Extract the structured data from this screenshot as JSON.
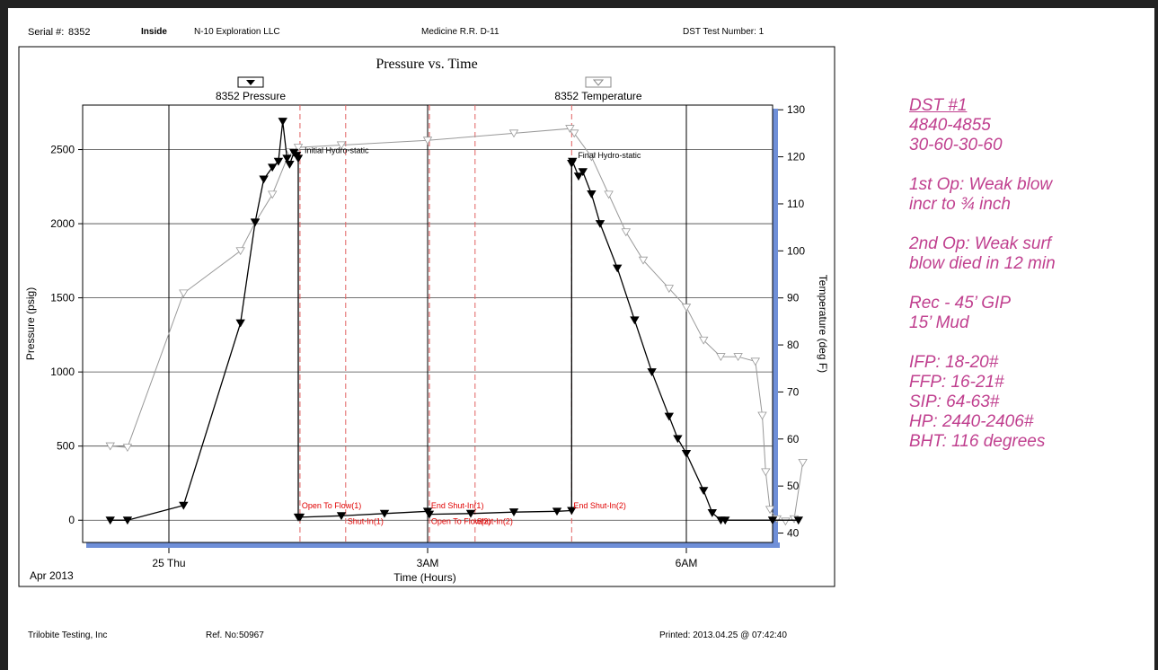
{
  "header": {
    "serial_label": "Serial #:",
    "serial_value": "8352",
    "inside": "Inside",
    "company": "N-10 Exploration LLC",
    "well": "Medicine R.R. D-11",
    "test_number": "DST Test Number: 1"
  },
  "footer": {
    "company": "Trilobite Testing, Inc",
    "ref_label": "Ref. No:",
    "ref_value": "50967",
    "printed": "Printed: 2013.04.25 @ 07:42:40"
  },
  "notes": [
    "DST #1",
    "4840-4855",
    "30-60-30-60",
    "",
    "1st Op:  Weak blow",
    "incr to ¾ inch",
    "",
    "2nd Op:  Weak surf",
    "blow died in 12 min",
    "",
    "Rec - 45’  GIP",
    "15’ Mud",
    "",
    "IFP:  18-20#",
    "FFP:  16-21#",
    "SIP:  64-63#",
    "HP:  2440-2406#",
    "BHT:  116 degrees"
  ],
  "colors": {
    "notes": "#c0408f",
    "axis_bar": "#6f8fd8",
    "marker_line": "#e06060",
    "event_text": "#e00000",
    "temperature": "#999999"
  },
  "chart_data": {
    "type": "line",
    "title": "Pressure vs. Time",
    "xlabel": "Time (Hours)",
    "ylabel": "Pressure (psig)",
    "y2label": "Temperature (deg F)",
    "x_ticks": [
      "25 Thu",
      "3AM",
      "6AM"
    ],
    "x_tick_hours": [
      0,
      3,
      6
    ],
    "x_corner_label": "Apr 2013",
    "xlim_hours": [
      -1.0,
      7.0
    ],
    "ylim": [
      -150,
      2800
    ],
    "y_ticks": [
      0,
      500,
      1000,
      1500,
      2000,
      2500
    ],
    "y2lim": [
      38,
      131
    ],
    "y2_ticks": [
      40,
      50,
      60,
      70,
      80,
      90,
      100,
      110,
      120,
      130
    ],
    "legend": [
      "8352 Pressure",
      "8352 Temperature"
    ],
    "series": [
      {
        "name": "8352 Pressure",
        "axis": "left",
        "x": [
          -0.68,
          -0.48,
          0.17,
          0.83,
          1.0,
          1.1,
          1.2,
          1.27,
          1.32,
          1.37,
          1.4,
          1.45,
          1.48,
          1.5,
          1.5,
          1.52,
          2.0,
          2.5,
          3.0,
          3.02,
          3.5,
          4.0,
          4.5,
          4.67,
          4.67,
          4.68,
          4.75,
          4.8,
          4.9,
          5.0,
          5.2,
          5.4,
          5.6,
          5.8,
          5.9,
          6.0,
          6.2,
          6.3,
          6.4,
          6.45,
          7.0,
          7.3
        ],
        "y": [
          0,
          0,
          100,
          1330,
          2010,
          2300,
          2380,
          2420,
          2690,
          2440,
          2400,
          2480,
          2460,
          2440,
          20,
          20,
          30,
          45,
          60,
          40,
          45,
          55,
          60,
          65,
          2406,
          2420,
          2320,
          2350,
          2200,
          2000,
          1700,
          1350,
          1000,
          700,
          550,
          450,
          200,
          50,
          0,
          0,
          0,
          0
        ]
      },
      {
        "name": "8352 Temperature",
        "axis": "right",
        "x": [
          -0.68,
          -0.48,
          0.17,
          0.83,
          1.0,
          1.2,
          1.4,
          1.5,
          2.0,
          3.0,
          4.0,
          4.65,
          4.7,
          4.9,
          5.1,
          5.3,
          5.5,
          5.8,
          6.0,
          6.2,
          6.4,
          6.6,
          6.8,
          6.88,
          6.92,
          6.97,
          7.05,
          7.15,
          7.25,
          7.35
        ],
        "y": [
          58.5,
          58.2,
          91,
          100,
          106,
          112,
          121,
          122,
          122.5,
          123.5,
          125,
          126,
          125,
          120,
          112,
          104,
          98,
          92,
          88,
          81,
          77.5,
          77.5,
          76.5,
          65,
          53,
          45,
          43,
          42.5,
          43,
          55
        ]
      }
    ],
    "annotations": [
      {
        "text": "Initial Hydro-static",
        "x": 1.5,
        "y": 2440
      },
      {
        "text": "Final Hydro-static",
        "x": 4.67,
        "y": 2406
      }
    ],
    "events": [
      {
        "label": "Open To Flow(1)",
        "x": 1.52,
        "pos": "upper"
      },
      {
        "label": "Shut-In(1)",
        "x": 2.05,
        "pos": "lower"
      },
      {
        "label": "End Shut-In(1)",
        "x": 3.02,
        "pos": "upper"
      },
      {
        "label": "Open To Flow(2)",
        "x": 3.02,
        "pos": "lower"
      },
      {
        "label": "Shut-In(2)",
        "x": 3.55,
        "pos": "lower"
      },
      {
        "label": "End Shut-In(2)",
        "x": 4.67,
        "pos": "upper"
      }
    ]
  }
}
